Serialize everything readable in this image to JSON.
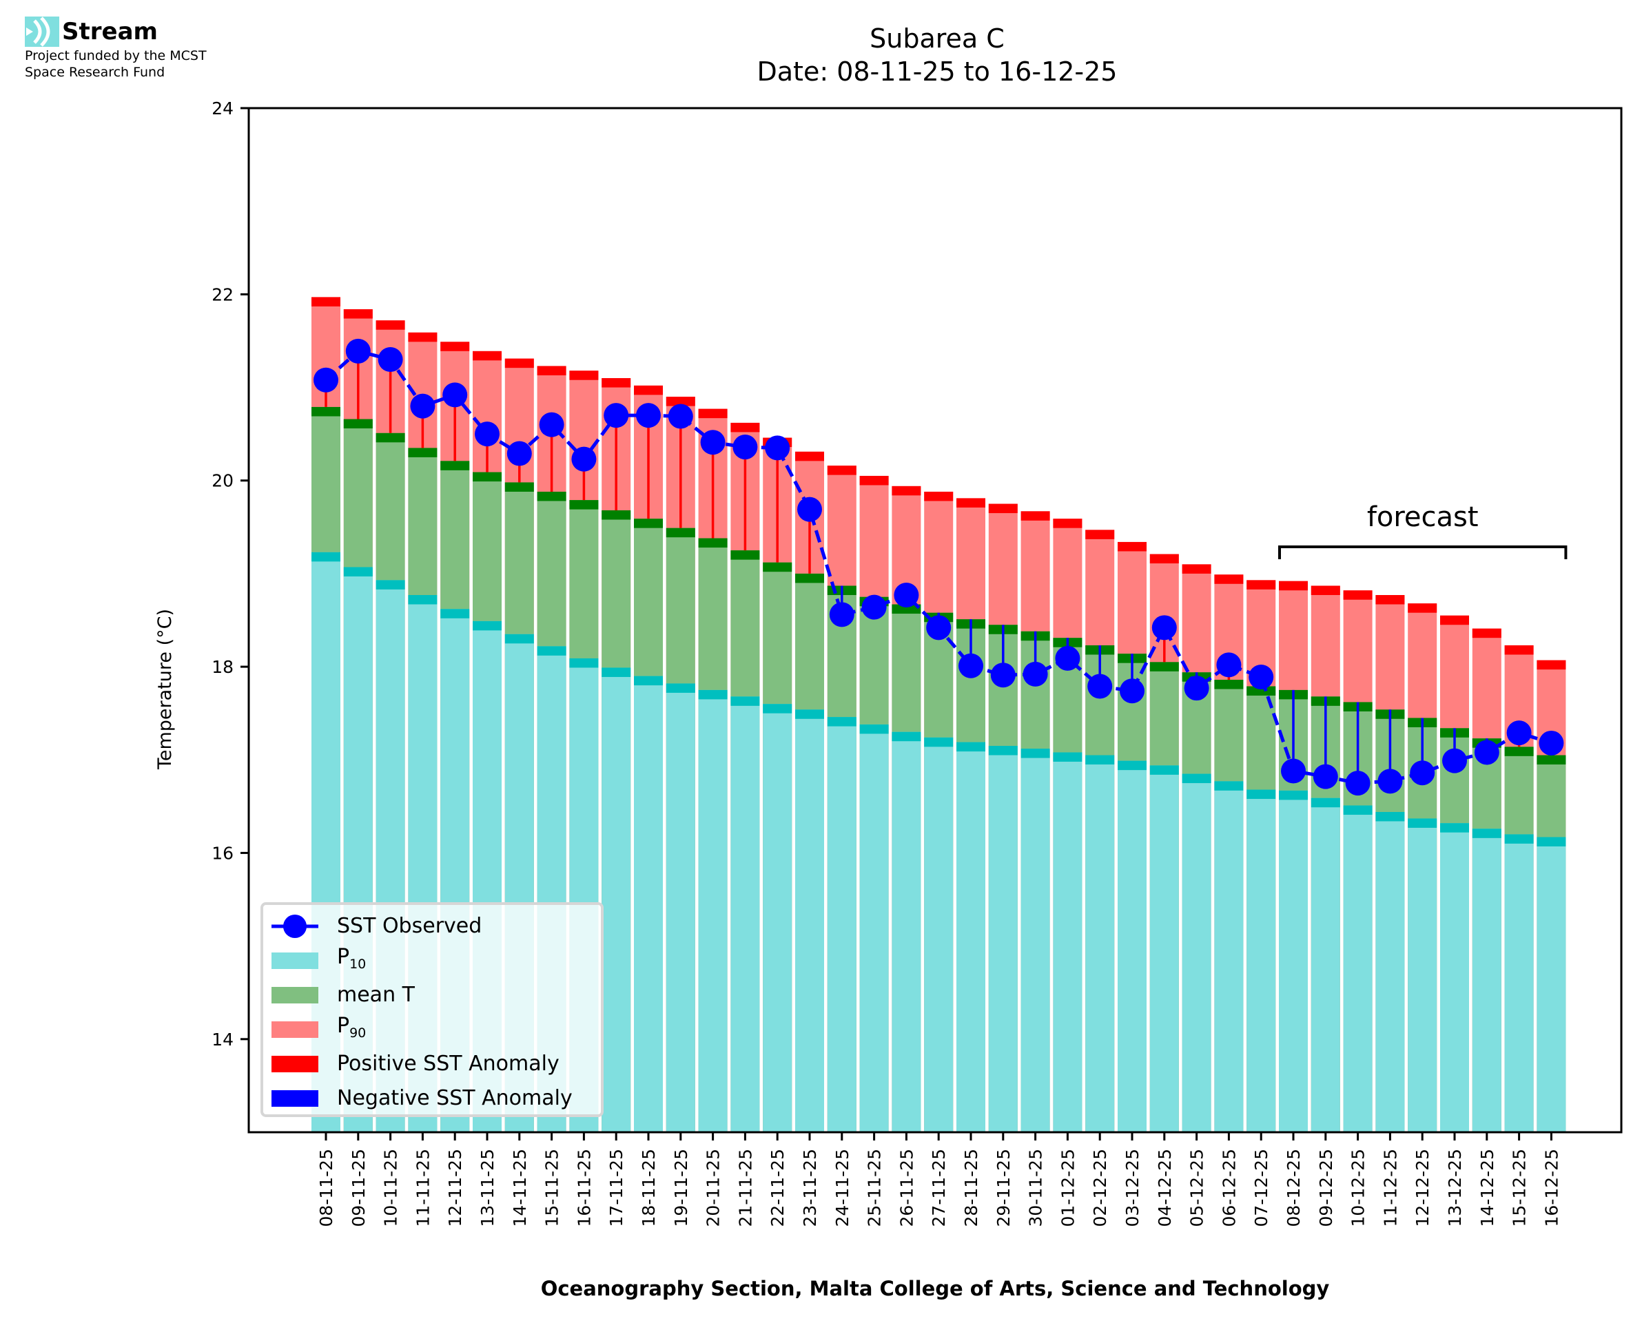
{
  "logo": {
    "name": "Stream",
    "subtitle_line1": "Project funded by the MCST",
    "subtitle_line2": "Space Research Fund",
    "icon": "stream-waves-icon"
  },
  "colors": {
    "p10": "#80dfdf",
    "p10_cap": "#00bfbf",
    "mean": "#80bf80",
    "mean_cap": "#008000",
    "p90": "#ff8080",
    "p90_cap": "#ff0000",
    "sst": "#0000ff",
    "positive_anomaly": "#ff0000",
    "negative_anomaly": "#0000ff"
  },
  "chart_data": {
    "type": "bar",
    "title": "Subarea C",
    "subtitle": "Date: 08-11-25 to 16-12-25",
    "xlabel": "Oceanography Section, Malta College of Arts, Science and Technology",
    "ylabel": "Temperature (°C)",
    "ylim": [
      13,
      24
    ],
    "yticks": [
      14,
      16,
      18,
      20,
      22,
      24
    ],
    "grid": false,
    "legend_position": "lower-left",
    "categories": [
      "08-11-25",
      "09-11-25",
      "10-11-25",
      "11-11-25",
      "12-11-25",
      "13-11-25",
      "14-11-25",
      "15-11-25",
      "16-11-25",
      "17-11-25",
      "18-11-25",
      "19-11-25",
      "20-11-25",
      "21-11-25",
      "22-11-25",
      "23-11-25",
      "24-11-25",
      "25-11-25",
      "26-11-25",
      "27-11-25",
      "28-11-25",
      "29-11-25",
      "30-11-25",
      "01-12-25",
      "02-12-25",
      "03-12-25",
      "04-12-25",
      "05-12-25",
      "06-12-25",
      "07-12-25",
      "08-12-25",
      "09-12-25",
      "10-12-25",
      "11-12-25",
      "12-12-25",
      "13-12-25",
      "14-12-25",
      "15-12-25",
      "16-12-25"
    ],
    "series": [
      {
        "name": "P10",
        "label_main": "P",
        "label_sub": "10",
        "type": "bar",
        "values": [
          19.23,
          19.07,
          18.93,
          18.77,
          18.62,
          18.49,
          18.35,
          18.22,
          18.09,
          17.99,
          17.9,
          17.82,
          17.75,
          17.68,
          17.6,
          17.54,
          17.46,
          17.38,
          17.3,
          17.24,
          17.19,
          17.15,
          17.12,
          17.08,
          17.05,
          16.99,
          16.94,
          16.85,
          16.77,
          16.68,
          16.67,
          16.59,
          16.51,
          16.44,
          16.37,
          16.32,
          16.26,
          16.2,
          16.17
        ]
      },
      {
        "name": "mean T",
        "label_main": "mean T",
        "label_sub": "",
        "type": "bar",
        "values": [
          20.79,
          20.66,
          20.51,
          20.35,
          20.21,
          20.09,
          19.98,
          19.88,
          19.79,
          19.68,
          19.59,
          19.49,
          19.38,
          19.25,
          19.12,
          19.0,
          18.87,
          18.75,
          18.67,
          18.58,
          18.51,
          18.45,
          18.38,
          18.31,
          18.23,
          18.14,
          18.05,
          17.94,
          17.86,
          17.79,
          17.75,
          17.68,
          17.62,
          17.54,
          17.45,
          17.34,
          17.23,
          17.14,
          17.05
        ]
      },
      {
        "name": "P90",
        "label_main": "P",
        "label_sub": "90",
        "type": "bar",
        "values": [
          21.97,
          21.84,
          21.72,
          21.59,
          21.49,
          21.39,
          21.31,
          21.23,
          21.18,
          21.1,
          21.02,
          20.9,
          20.77,
          20.62,
          20.46,
          20.31,
          20.16,
          20.05,
          19.94,
          19.88,
          19.81,
          19.75,
          19.67,
          19.59,
          19.47,
          19.34,
          19.21,
          19.1,
          18.99,
          18.93,
          18.92,
          18.87,
          18.82,
          18.77,
          18.68,
          18.55,
          18.41,
          18.23,
          18.07
        ]
      },
      {
        "name": "SST Observed",
        "label_main": "SST Observed",
        "label_sub": "",
        "type": "line",
        "values": [
          21.08,
          21.39,
          21.3,
          20.8,
          20.92,
          20.5,
          20.29,
          20.6,
          20.23,
          20.7,
          20.7,
          20.69,
          20.41,
          20.36,
          20.35,
          19.69,
          18.56,
          18.64,
          18.77,
          18.42,
          18.01,
          17.91,
          17.92,
          18.09,
          17.79,
          17.74,
          18.42,
          17.77,
          18.02,
          17.89,
          16.88,
          16.82,
          16.75,
          16.77,
          16.86,
          16.99,
          17.08,
          17.29,
          17.18
        ]
      }
    ],
    "legend": [
      {
        "key": "sst",
        "main": "SST Observed",
        "sub": ""
      },
      {
        "key": "p10",
        "main": "P",
        "sub": "10"
      },
      {
        "key": "mean",
        "main": "mean T",
        "sub": ""
      },
      {
        "key": "p90",
        "main": "P",
        "sub": "90"
      },
      {
        "key": "pos",
        "main": "Positive SST Anomaly",
        "sub": ""
      },
      {
        "key": "neg",
        "main": "Negative SST Anomaly",
        "sub": ""
      }
    ],
    "annotations": [
      {
        "text": "forecast",
        "from_category": "08-12-25",
        "to_category": "16-12-25"
      }
    ]
  }
}
